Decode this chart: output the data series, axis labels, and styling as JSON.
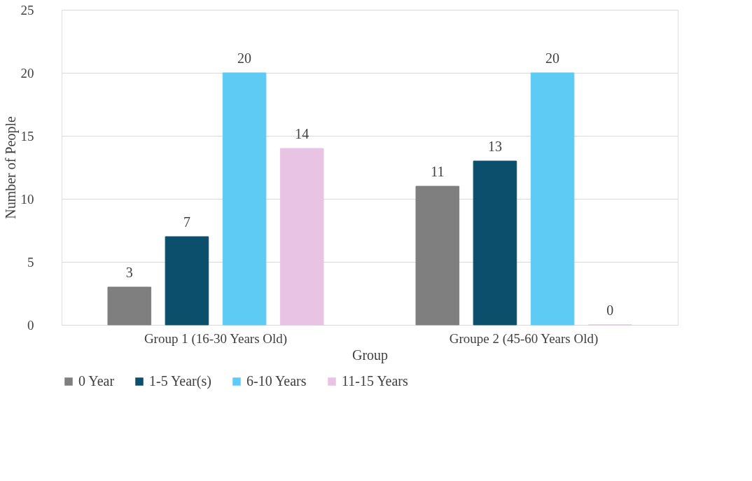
{
  "chart_data": {
    "type": "bar",
    "xlabel": "Group",
    "ylabel": "Number of People",
    "categories": [
      "Group 1 (16-30 Years Old)",
      "Groupe 2 (45-60 Years Old)"
    ],
    "series": [
      {
        "name": "0 Year",
        "color": "#7f7f7f",
        "values": [
          3,
          11
        ]
      },
      {
        "name": "1-5 Year(s)",
        "color": "#0b4f6c",
        "values": [
          7,
          13
        ]
      },
      {
        "name": "6-10 Years",
        "color": "#5ecbf5",
        "values": [
          20,
          20
        ]
      },
      {
        "name": "11-15 Years",
        "color": "#e9c3e3",
        "values": [
          14,
          0
        ]
      }
    ],
    "ylim": [
      0,
      25
    ],
    "yticks": [
      0,
      5,
      10,
      15,
      20,
      25
    ],
    "grid": "y",
    "legend": "bottom",
    "data_labels": true
  }
}
